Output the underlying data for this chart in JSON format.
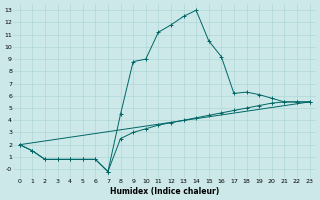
{
  "xlabel": "Humidex (Indice chaleur)",
  "bg_color": "#cce8e8",
  "line_color": "#006666",
  "grid_color": "#b0d8d8",
  "line1_x": [
    0,
    1,
    2,
    3,
    4,
    5,
    6,
    7,
    8,
    9,
    10,
    11,
    12,
    13,
    14,
    15,
    16,
    17,
    18,
    19,
    20,
    21,
    22,
    23
  ],
  "line1_y": [
    2.0,
    1.5,
    0.8,
    0.8,
    0.8,
    0.8,
    0.8,
    -0.2,
    4.5,
    8.8,
    9.0,
    11.2,
    11.8,
    12.5,
    13.0,
    10.5,
    9.2,
    6.2,
    6.3,
    6.1,
    5.8,
    5.5,
    5.5,
    5.5
  ],
  "line2_x": [
    0,
    1,
    2,
    3,
    4,
    5,
    6,
    7,
    8,
    9,
    10,
    11,
    12,
    13,
    14,
    15,
    16,
    17,
    18,
    19,
    20,
    21,
    22,
    23
  ],
  "line2_y": [
    2.0,
    1.5,
    0.8,
    0.8,
    0.8,
    0.8,
    0.8,
    -0.2,
    2.5,
    3.0,
    3.3,
    3.6,
    3.8,
    4.0,
    4.2,
    4.4,
    4.6,
    4.8,
    5.0,
    5.2,
    5.4,
    5.5,
    5.5,
    5.5
  ],
  "line3_x": [
    0,
    23
  ],
  "line3_y": [
    2.0,
    5.5
  ],
  "xlim": [
    -0.5,
    23.5
  ],
  "ylim": [
    -0.7,
    13.5
  ],
  "yticks": [
    0,
    1,
    2,
    3,
    4,
    5,
    6,
    7,
    8,
    9,
    10,
    11,
    12,
    13
  ],
  "xticks": [
    0,
    1,
    2,
    3,
    4,
    5,
    6,
    7,
    8,
    9,
    10,
    11,
    12,
    13,
    14,
    15,
    16,
    17,
    18,
    19,
    20,
    21,
    22,
    23
  ]
}
